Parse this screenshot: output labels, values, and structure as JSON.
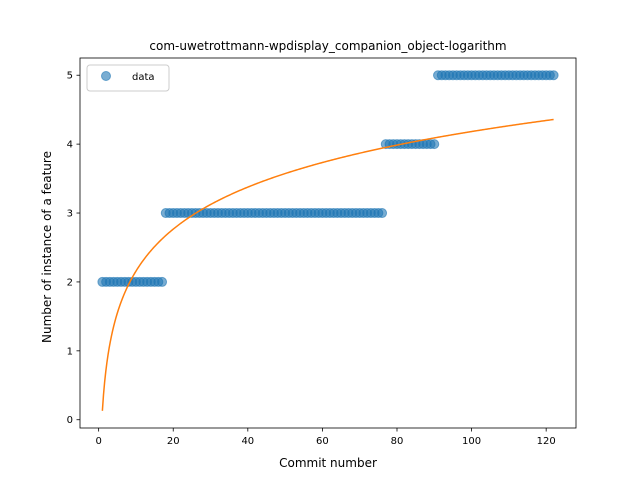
{
  "chart_data": {
    "type": "scatter",
    "title": "com-uwetrottmann-wpdisplay_companion_object-logarithm",
    "xlabel": "Commit number",
    "ylabel": "Number of instance of a feature",
    "xlim": [
      -5,
      128
    ],
    "ylim": [
      -0.12,
      5.25
    ],
    "xticks": [
      0,
      20,
      40,
      60,
      80,
      100,
      120
    ],
    "yticks": [
      0,
      1,
      2,
      3,
      4,
      5
    ],
    "grid": false,
    "legend": {
      "placement": "top-left",
      "entries": [
        "data"
      ]
    },
    "series": [
      {
        "name": "data",
        "type": "scatter",
        "color": "#1f77b4",
        "segments": [
          {
            "x_from": 1,
            "x_to": 17,
            "y": 2
          },
          {
            "x_from": 18,
            "x_to": 76,
            "y": 3
          },
          {
            "x_from": 77,
            "x_to": 90,
            "y": 4
          },
          {
            "x_from": 91,
            "x_to": 122,
            "y": 5
          }
        ]
      },
      {
        "type": "line",
        "color": "#ff7f0e",
        "fit": {
          "form": "a*ln(x)+b",
          "a": 0.88,
          "b": 0.13,
          "x_from": 1,
          "x_to": 122
        }
      }
    ]
  }
}
